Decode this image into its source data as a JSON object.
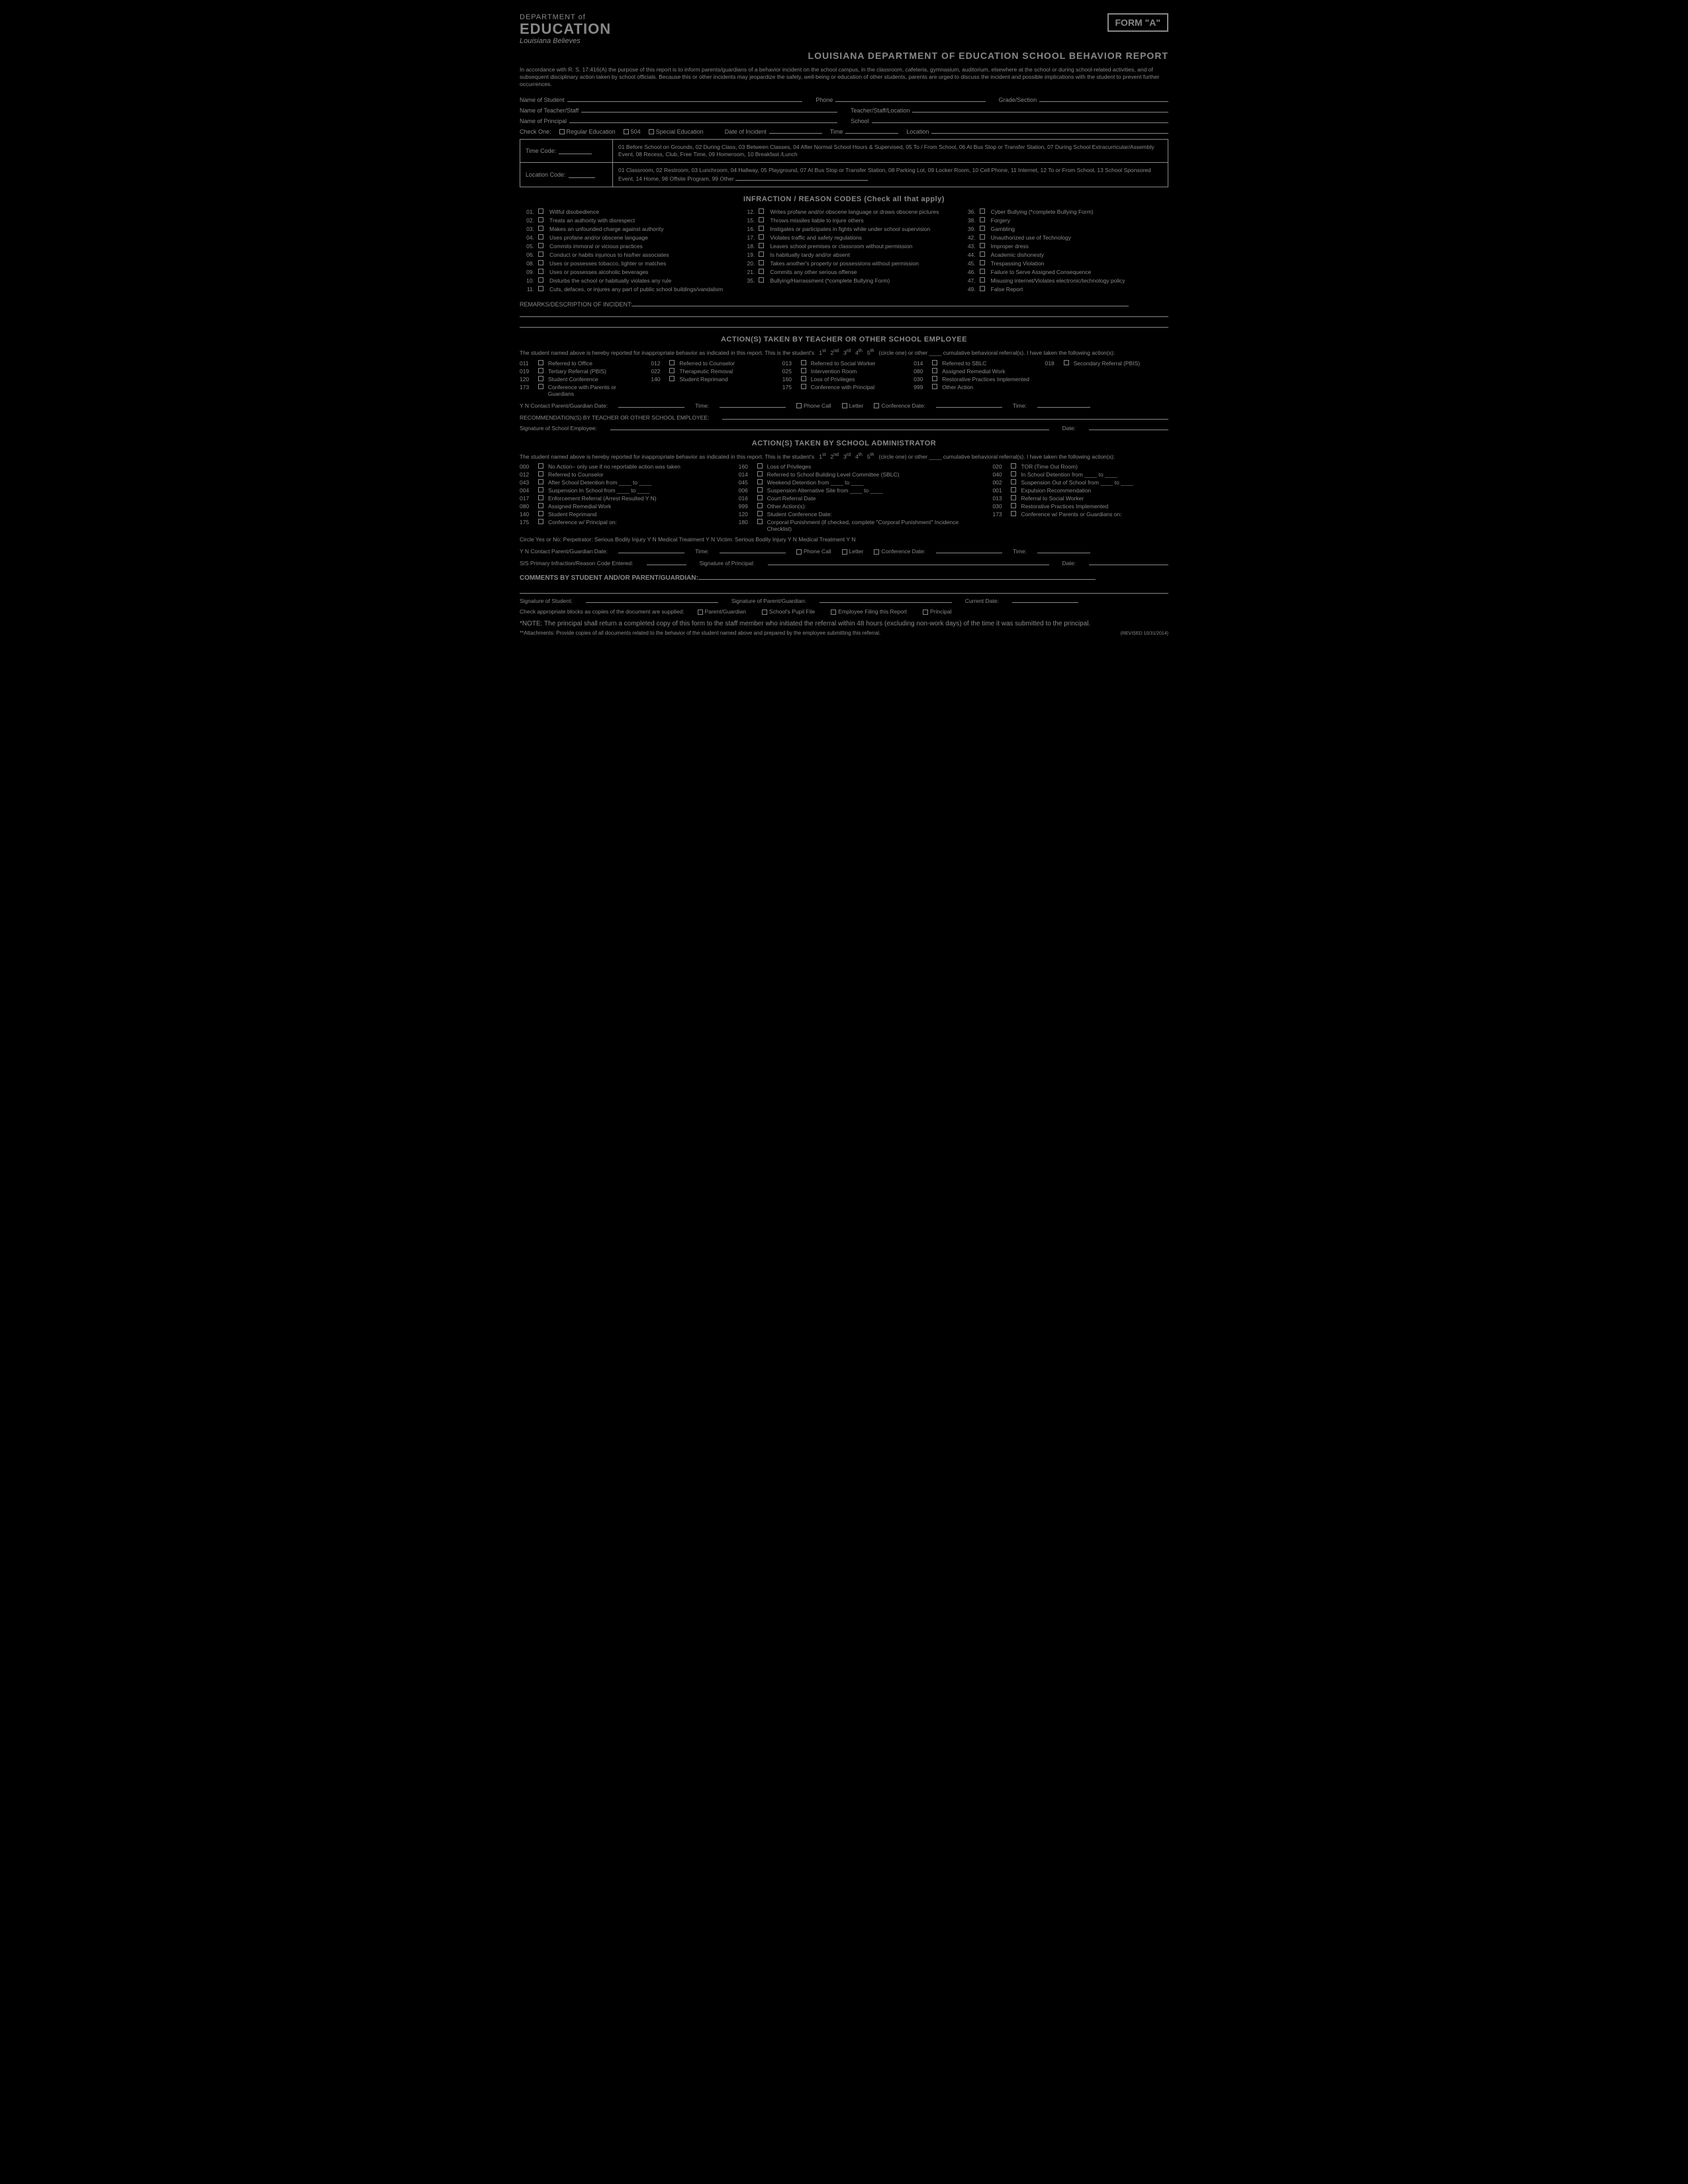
{
  "header": {
    "dept": "DEPARTMENT of",
    "edu": "EDUCATION",
    "tagline": "Louisiana Believes",
    "form_label": "FORM \"A\"",
    "title": "LOUISIANA DEPARTMENT OF EDUCATION SCHOOL BEHAVIOR REPORT"
  },
  "intro": "In accordance with R. S. 17:416(A) the purpose of this report is to inform parents/guardians of a behavior incident on the school campus, in the classroom, cafeteria, gymnasium, auditorium, elsewhere at the school or during school-related activities, and of subsequent disciplinary action taken by school officials. Because this or other incidents may jeopardize the safety, well-being or education of other students, parents are urged to discuss the incident and possible implications with the student to prevent further occurrences.",
  "fields": {
    "student": "Name of Student",
    "phone": "Phone",
    "grade": "Grade/Section",
    "teacher": "Name of Teacher/Staff",
    "teacher_loc": "Teacher/Staff/Location",
    "principal": "Name of Principal",
    "school": "School",
    "check_one": "Check One:",
    "reg": "Regular Education",
    "s504": "504",
    "special": "Special Education",
    "date_incident": "Date of Incident",
    "time": "Time",
    "location": "Location"
  },
  "codes": {
    "time_label": "Time Code:",
    "time_text": "01 Before School on Grounds, 02 During Class, 03 Between Classes, 04 After Normal School Hours & Supervised, 05 To / From School, 06 At Bus Stop or Transfer Station, 07 During School Extracurricular/Assembly Event, 08 Recess, Club, Free Time, 09 Homeroom, 10 Breakfast /Lunch",
    "loc_label": "Location Code:",
    "loc_text": "01 Classroom, 02 Restroom, 03 Lunchroom, 04 Hallway, 05 Playground, 07 At Bus Stop or Transfer Station, 08 Parking Lot, 09 Locker Room, 10 Cell Phone, 11 Internet, 12 To or From School, 13 School Sponsored Event, 14 Home, 98 Offsite Program, 99 Other"
  },
  "infraction_hdr": "INFRACTION / REASON CODES (Check all that apply)",
  "inf_col1": [
    {
      "n": "01.",
      "t": "Willful disobedience"
    },
    {
      "n": "02.",
      "t": "Treats an authority with disrespect"
    },
    {
      "n": "03.",
      "t": "Makes an unfounded charge against authority"
    },
    {
      "n": "04.",
      "t": "Uses profane and/or obscene language"
    },
    {
      "n": "05.",
      "t": "Commits immoral or vicious practices"
    },
    {
      "n": "06.",
      "t": "Conduct or habits injurious to his/her associates"
    },
    {
      "n": "08.",
      "t": "Uses or possesses tobacco, lighter or matches"
    },
    {
      "n": "09.",
      "t": "Uses or possesses alcoholic beverages"
    },
    {
      "n": "10.",
      "t": "Disturbs the school or habitually violates any rule"
    },
    {
      "n": "11.",
      "t": "Cuts, defaces, or injures any part of public school buildings/vandalism"
    }
  ],
  "inf_col2": [
    {
      "n": "12.",
      "t": "Writes profane and/or obscene language or draws obscene pictures"
    },
    {
      "n": "15.",
      "t": "Throws missiles liable to injure others"
    },
    {
      "n": "16.",
      "t": "Instigates or participates in fights while under school supervision"
    },
    {
      "n": "17.",
      "t": "Violates traffic and safety regulations"
    },
    {
      "n": "18.",
      "t": "Leaves school premises or classroom without permission"
    },
    {
      "n": "19.",
      "t": "Is habitually tardy and/or absent"
    },
    {
      "n": "20.",
      "t": "Takes another's property or possessions without permission"
    },
    {
      "n": "21.",
      "t": "Commits any other serious offense"
    },
    {
      "n": "35.",
      "t": "Bullying/Harrassment (*complete Bullying Form)"
    }
  ],
  "inf_col3": [
    {
      "n": "36.",
      "t": "Cyber Bullying (*complete Bullying Form)"
    },
    {
      "n": "38.",
      "t": "Forgery"
    },
    {
      "n": "39.",
      "t": "Gambling"
    },
    {
      "n": "42.",
      "t": "Unauthorized use of Technology"
    },
    {
      "n": "43.",
      "t": "Improper dress"
    },
    {
      "n": "44.",
      "t": "Academic dishonesty"
    },
    {
      "n": "45.",
      "t": "Trespassing Violation"
    },
    {
      "n": "46.",
      "t": "Failure to Serve Assigned Consequence"
    },
    {
      "n": "47.",
      "t": "Misusing internet/Violates electronic/technology policy"
    },
    {
      "n": "49.",
      "t": "False Report"
    }
  ],
  "remarks_label": "REMARKS/DESCRIPTION OF INCIDENT:",
  "teacher_section": {
    "hdr": "ACTION(S) TAKEN BY TEACHER OR OTHER SCHOOL EMPLOYEE",
    "text_a": "The student named above is hereby reported for inappropriate behavior as indicated in this report. This is the student's",
    "text_b": "(circle one) or other ____ cumulative behavioral referral(s). I have taken the following action(s):",
    "actions": [
      {
        "n": "011",
        "t": "Referred to Office"
      },
      {
        "n": "012",
        "t": "Referred to Counselor"
      },
      {
        "n": "013",
        "t": "Referred to Social Worker"
      },
      {
        "n": "014",
        "t": "Referred to SBLC"
      },
      {
        "n": "018",
        "t": "Secondary Referral (PBIS)"
      },
      {
        "n": "019",
        "t": "Tertiary Referral (PBIS)"
      },
      {
        "n": "022",
        "t": "Therapeutic Removal"
      },
      {
        "n": "025",
        "t": "Intervention Room"
      },
      {
        "n": "080",
        "t": "Assigned Remedial Work"
      },
      {
        "n": "",
        "t": ""
      },
      {
        "n": "120",
        "t": "Student Conference"
      },
      {
        "n": "140",
        "t": "Student Reprimand"
      },
      {
        "n": "160",
        "t": "Loss of Privileges"
      },
      {
        "n": "030",
        "t": "Restorative Practices Implemented"
      },
      {
        "n": "",
        "t": ""
      },
      {
        "n": "173",
        "t": "Conference with Parents or Guardians"
      },
      {
        "n": "",
        "t": ""
      },
      {
        "n": "175",
        "t": "Conference with Principal"
      },
      {
        "n": "999",
        "t": "Other Action"
      },
      {
        "n": "",
        "t": ""
      }
    ],
    "contact": "Y  N  Contact Parent/Guardian Date:",
    "time": "Time:",
    "phone": "Phone Call",
    "letter": "Letter",
    "conf_date": "Conference Date:",
    "conf_time": "Time:",
    "rec": "RECOMMENDATION(S) BY TEACHER OR OTHER SCHOOL EMPLOYEE:",
    "sig": "Signature of School Employee:",
    "date": "Date:"
  },
  "admin_section": {
    "hdr": "ACTION(S) TAKEN BY SCHOOL ADMINISTRATOR",
    "actions_c1": [
      {
        "n": "000",
        "t": "No Action– only use if no reportable action was taken"
      },
      {
        "n": "012",
        "t": "Referred to Counselor"
      },
      {
        "n": "043",
        "t": "After School Detention from ____ to ____"
      },
      {
        "n": "004",
        "t": "Suspension In School from ____ to ____"
      },
      {
        "n": "017",
        "t": "Enforcement Referral (Arrest Resulted Y N)"
      },
      {
        "n": "080",
        "t": "Assigned Remedial Work"
      },
      {
        "n": "140",
        "t": "Student Reprimand"
      },
      {
        "n": "175",
        "t": "Conference w/ Principal on:"
      }
    ],
    "actions_c2": [
      {
        "n": "160",
        "t": "Loss of Privileges"
      },
      {
        "n": "014",
        "t": "Referred to School Building Level Committee (SBLC)"
      },
      {
        "n": "045",
        "t": "Weekend Detention from ____ to ____"
      },
      {
        "n": "006",
        "t": "Suspension Alternative Site from ____ to ____"
      },
      {
        "n": "016",
        "t": "Court Referral Date"
      },
      {
        "n": "999",
        "t": "Other Action(s):"
      },
      {
        "n": "120",
        "t": "Student Conference Date:"
      },
      {
        "n": "180",
        "t": "Corporal Punishment (if checked, complete \"Corporal Punishment\" Incidence Checklist)"
      }
    ],
    "actions_c3": [
      {
        "n": "020",
        "t": "TOR (Time Out Room)"
      },
      {
        "n": "040",
        "t": "In School Detention from ____ to ____"
      },
      {
        "n": "002",
        "t": "Suspension Out of School from ____ to ____"
      },
      {
        "n": "001",
        "t": "Expulsion Recommendation"
      },
      {
        "n": "013",
        "t": "Referral to Social Worker"
      },
      {
        "n": "030",
        "t": "Restorative Practices Implemented"
      },
      {
        "n": "173",
        "t": "Conference w/ Parents or Guardians on:"
      },
      {
        "n": "",
        "t": ""
      }
    ],
    "circle": "Circle Yes or No:  Perpetrator: Serious Bodily Injury  Y  N     Medical Treatment  Y  N        Victim: Serious Bodily Injury  Y  N     Medical Treatment  Y  N",
    "sis": "SIS Primary Infraction/Reason Code Entered:",
    "sig_p": "Signature of Principal:",
    "date": "Date:"
  },
  "comments_hdr": "COMMENTS BY STUDENT AND/OR PARENT/GUARDIAN:",
  "sig_student": "Signature of Student:",
  "sig_parent": "Signature of Parent/Guardian:",
  "curr_date": "Current Date:",
  "dist_label": "Check appropriate blocks as copies of the document are supplied:",
  "dist": [
    "Parent/Guardian",
    "School's Pupil File",
    "Employee Filing this Report",
    "Principal"
  ],
  "note1": "*NOTE: The principal shall return a completed copy of this form to the staff member who initiated the referral within 48 hours (excluding non-work days) of the time it was submitted to the principal.",
  "note2": "**Attachments: Provide copies of all documents related to the behavior of the student named above and prepared by the employee submitting this referral.",
  "revised": "(REVISED 10/31/2014)"
}
